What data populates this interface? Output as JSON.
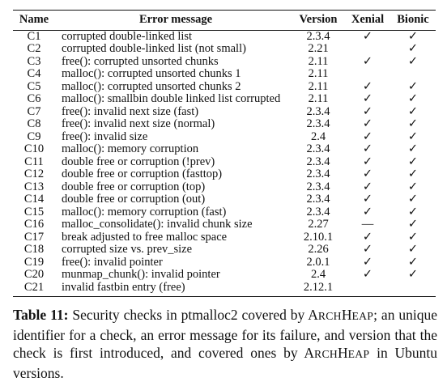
{
  "table": {
    "headers": {
      "name": "Name",
      "message": "Error message",
      "version": "Version",
      "xenial": "Xenial",
      "bionic": "Bionic"
    },
    "rows": [
      {
        "name": "C1",
        "message": "corrupted double-linked list",
        "version": "2.3.4",
        "xenial": "✓",
        "bionic": "✓"
      },
      {
        "name": "C2",
        "message": "corrupted double-linked list (not small)",
        "version": "2.21",
        "xenial": "",
        "bionic": "✓"
      },
      {
        "name": "C3",
        "message": "free(): corrupted unsorted chunks",
        "version": "2.11",
        "xenial": "✓",
        "bionic": "✓"
      },
      {
        "name": "C4",
        "message": "malloc(): corrupted unsorted chunks 1",
        "version": "2.11",
        "xenial": "",
        "bionic": ""
      },
      {
        "name": "C5",
        "message": "malloc(): corrupted unsorted chunks 2",
        "version": "2.11",
        "xenial": "✓",
        "bionic": "✓"
      },
      {
        "name": "C6",
        "message": "malloc(): smallbin double linked list corrupted",
        "version": "2.11",
        "xenial": "✓",
        "bionic": "✓"
      },
      {
        "name": "C7",
        "message": "free(): invalid next size (fast)",
        "version": "2.3.4",
        "xenial": "✓",
        "bionic": "✓"
      },
      {
        "name": "C8",
        "message": "free(): invalid next size (normal)",
        "version": "2.3.4",
        "xenial": "✓",
        "bionic": "✓"
      },
      {
        "name": "C9",
        "message": "free(): invalid size",
        "version": "2.4",
        "xenial": "✓",
        "bionic": "✓"
      },
      {
        "name": "C10",
        "message": "malloc(): memory corruption",
        "version": "2.3.4",
        "xenial": "✓",
        "bionic": "✓"
      },
      {
        "name": "C11",
        "message": "double free or corruption (!prev)",
        "version": "2.3.4",
        "xenial": "✓",
        "bionic": "✓"
      },
      {
        "name": "C12",
        "message": "double free or corruption (fasttop)",
        "version": "2.3.4",
        "xenial": "✓",
        "bionic": "✓"
      },
      {
        "name": "C13",
        "message": "double free or corruption (top)",
        "version": "2.3.4",
        "xenial": "✓",
        "bionic": "✓"
      },
      {
        "name": "C14",
        "message": "double free or corruption (out)",
        "version": "2.3.4",
        "xenial": "✓",
        "bionic": "✓"
      },
      {
        "name": "C15",
        "message": "malloc(): memory corruption (fast)",
        "version": "2.3.4",
        "xenial": "✓",
        "bionic": "✓"
      },
      {
        "name": "C16",
        "message": "malloc_consolidate(): invalid chunk size",
        "version": "2.27",
        "xenial": "—",
        "bionic": "✓"
      },
      {
        "name": "C17",
        "message": "break adjusted to free malloc space",
        "version": "2.10.1",
        "xenial": "✓",
        "bionic": "✓"
      },
      {
        "name": "C18",
        "message": "corrupted size vs. prev_size",
        "version": "2.26",
        "xenial": "✓",
        "bionic": "✓"
      },
      {
        "name": "C19",
        "message": "free(): invalid pointer",
        "version": "2.0.1",
        "xenial": "✓",
        "bionic": "✓"
      },
      {
        "name": "C20",
        "message": "munmap_chunk(): invalid pointer",
        "version": "2.4",
        "xenial": "✓",
        "bionic": "✓"
      },
      {
        "name": "C21",
        "message": "invalid fastbin entry (free)",
        "version": "2.12.1",
        "xenial": "",
        "bionic": ""
      }
    ]
  },
  "caption": {
    "label": "Table 11:",
    "text_before": " Security checks in ptmalloc2 covered by ",
    "tool_first": "A",
    "tool_rest1": "RCH",
    "tool_mid": "H",
    "tool_rest2": "EAP",
    "text_middle": "; an unique identifier for a check, an error message for its failure, and version that the check is first introduced, and covered ones by ",
    "text_after": " in Ubuntu versions."
  }
}
